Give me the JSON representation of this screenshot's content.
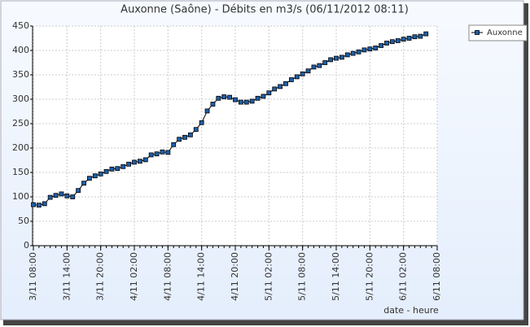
{
  "chart_data": {
    "type": "line",
    "title": "Auxonne (Saône) - Débits en m3/s (06/11/2012 08:11)",
    "xlabel": "date - heure",
    "categories": [
      "3/11 08:00",
      null,
      null,
      null,
      null,
      null,
      "3/11 14:00",
      null,
      null,
      null,
      null,
      null,
      "3/11 20:00",
      null,
      null,
      null,
      null,
      null,
      "4/11 02:00",
      null,
      null,
      null,
      null,
      null,
      "4/11 08:00",
      null,
      null,
      null,
      null,
      null,
      "4/11 14:00",
      null,
      null,
      null,
      null,
      null,
      "4/11 20:00",
      null,
      null,
      null,
      null,
      null,
      "5/11 02:00",
      null,
      null,
      null,
      null,
      null,
      "5/11 08:00",
      null,
      null,
      null,
      null,
      null,
      "5/11 14:00",
      null,
      null,
      null,
      null,
      null,
      "5/11 20:00",
      null,
      null,
      null,
      null,
      null,
      "6/11 02:00",
      null,
      null,
      null,
      null,
      null,
      "6/11 08:00"
    ],
    "series": [
      {
        "name": "Auxonne",
        "color": "#1f5fa8",
        "line_color": "#000000",
        "values": [
          84,
          83,
          86,
          99,
          103,
          106,
          102,
          100,
          113,
          128,
          138,
          143,
          147,
          152,
          157,
          158,
          162,
          167,
          171,
          173,
          176,
          186,
          188,
          192,
          191,
          207,
          218,
          222,
          227,
          238,
          252,
          276,
          290,
          302,
          305,
          304,
          299,
          294,
          294,
          296,
          302,
          306,
          313,
          321,
          326,
          332,
          340,
          346,
          352,
          358,
          366,
          369,
          375,
          381,
          384,
          386,
          391,
          394,
          397,
          401,
          403,
          405,
          410,
          415,
          418,
          420,
          423,
          425,
          428,
          429,
          434,
          null,
          null
        ]
      }
    ],
    "ylim": [
      0,
      450
    ],
    "yticks": [
      0,
      50,
      100,
      150,
      200,
      250,
      300,
      350,
      400,
      450
    ],
    "grid": true,
    "legend": "top-right"
  }
}
